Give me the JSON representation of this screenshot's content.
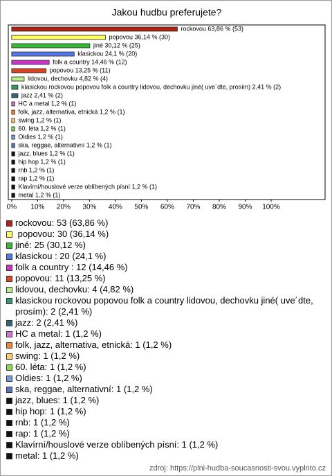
{
  "chart_data": {
    "type": "bar",
    "orientation": "horizontal",
    "title": "Jakou hudbu preferujete?",
    "values": [
      63.86,
      36.14,
      30.12,
      24.1,
      14.46,
      13.25,
      4.82,
      2.41,
      2.41,
      1.2,
      1.2,
      1.2,
      1.2,
      1.2,
      1.2,
      1.2,
      1.2,
      1.2,
      1.2,
      1.2,
      1.2
    ],
    "value_labels": [
      "rockovou 63,86 % (53)",
      "popovou 36,14 % (30)",
      "jiné 30,12 % (25)",
      "klasickou 24,1 % (20)",
      "folk a country 14,46 % (12)",
      "popovou 13,25 % (11)",
      "lidovou, dechovku 4,82 % (4)",
      "klasickou rockovou popovou folk a country lidovou, dechovku jiné( uve´dte, prosím) 2,41 % (2)",
      "jazz 2,41 % (2)",
      "HC a metal 1,2 % (1)",
      "folk, jazz, alternativa, etnická 1,2 % (1)",
      "swing 1,2 % (1)",
      "60. léta 1,2 % (1)",
      "Oldies 1,2 % (1)",
      "ska, reggae, alternativní 1,2 % (1)",
      "jazz, blues 1,2 % (1)",
      "hip hop 1,2 % (1)",
      "rnb 1,2 % (1)",
      "rap 1,2 % (1)",
      "Klavírní/houslové verze oblíbených písní 1,2 % (1)",
      "metal 1,2 % (1)"
    ],
    "legend": [
      "rockovou: 53 (63,86 %)",
      " popovou: 30 (36,14 %)",
      "jiné: 25 (30,12 %)",
      "klasickou : 20 (24,1 %)",
      "folk a country : 12 (14,46 %)",
      "popovou: 11 (13,25 %)",
      "lidovou, dechovku: 4 (4,82 %)",
      "klasickou rockovou popovou folk a country lidovou, dechovku jiné( uve´dte, prosím): 2 (2,41 %)",
      "jazz: 2 (2,41 %)",
      "HC a metal: 1 (1,2 %)",
      "folk, jazz, alternativa, etnická: 1 (1,2 %)",
      "swing: 1 (1,2 %)",
      "60. léta: 1 (1,2 %)",
      "Oldies: 1 (1,2 %)",
      "ska, reggae, alternativní: 1 (1,2 %)",
      "jazz, blues: 1 (1,2 %)",
      "hip hop: 1 (1,2 %)",
      "rnb: 1 (1,2 %)",
      "rap: 1 (1,2 %)",
      "Klavírní/houslové verze oblíbených písní: 1 (1,2 %)",
      "metal: 1 (1,2 %)"
    ],
    "colors": [
      "#b22212",
      "#ffff55",
      "#33bb33",
      "#5577ee",
      "#cc33cc",
      "#dd4422",
      "#bbee88",
      "#339966",
      "#336677",
      "#cc77cc",
      "#ee8833",
      "#ffcc66",
      "#88dd55",
      "#7799dd",
      "#5577bb",
      "#111111",
      "#111111",
      "#111111",
      "#111111",
      "#111111",
      "#111111"
    ],
    "xlim": [
      -1.3,
      120.8
    ],
    "xticks": [
      {
        "value": 0,
        "label": "0%"
      },
      {
        "value": 10,
        "label": "10%"
      },
      {
        "value": 20,
        "label": "20%"
      },
      {
        "value": 30,
        "label": "30%"
      },
      {
        "value": 40,
        "label": "40%"
      },
      {
        "value": 50,
        "label": "50%"
      },
      {
        "value": 60,
        "label": "60%"
      },
      {
        "value": 70,
        "label": "70%"
      },
      {
        "value": 80,
        "label": "80%"
      },
      {
        "value": 90,
        "label": "90%"
      },
      {
        "value": 100,
        "label": "100%"
      }
    ],
    "source": "zdroj: https://plni-hudba-soucasnosti-svou.vyplnto.cz"
  }
}
